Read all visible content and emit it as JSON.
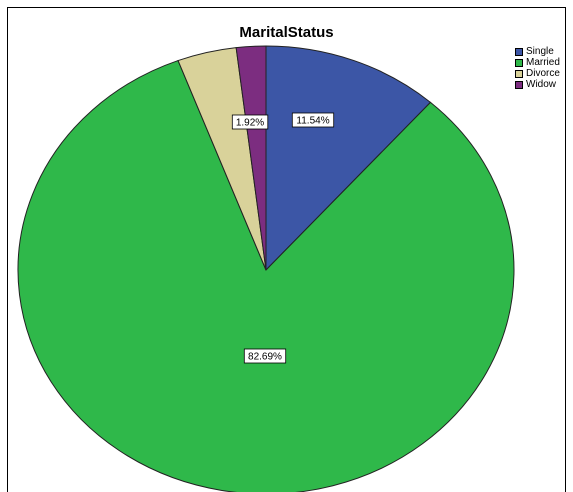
{
  "chart_data": {
    "type": "pie",
    "title": "MaritalStatus",
    "categories": [
      "Single",
      "Married",
      "Divorce",
      "Widow"
    ],
    "values": [
      11.54,
      82.69,
      3.85,
      1.92
    ],
    "data_labels": [
      "11.54%",
      "82.69%",
      "",
      "1.92%"
    ],
    "colors": [
      "#3c56a6",
      "#2fb84a",
      "#d9d29a",
      "#7c2d80"
    ],
    "legend_position": "top-right",
    "start_angle": "12 o'clock",
    "direction": "clockwise"
  }
}
